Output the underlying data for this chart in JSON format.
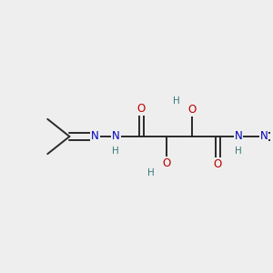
{
  "bg_color": "#eeeeee",
  "bond_color": "#2a2a2a",
  "bond_width": 1.4,
  "N_color": "#0000bb",
  "O_color": "#bb0000",
  "H_color": "#3a7878",
  "font_size_atom": 8.5,
  "font_size_H": 7.5,
  "figsize": [
    3.0,
    3.0
  ],
  "dpi": 100,
  "xlim": [
    0,
    10
  ],
  "ylim": [
    0,
    10
  ]
}
